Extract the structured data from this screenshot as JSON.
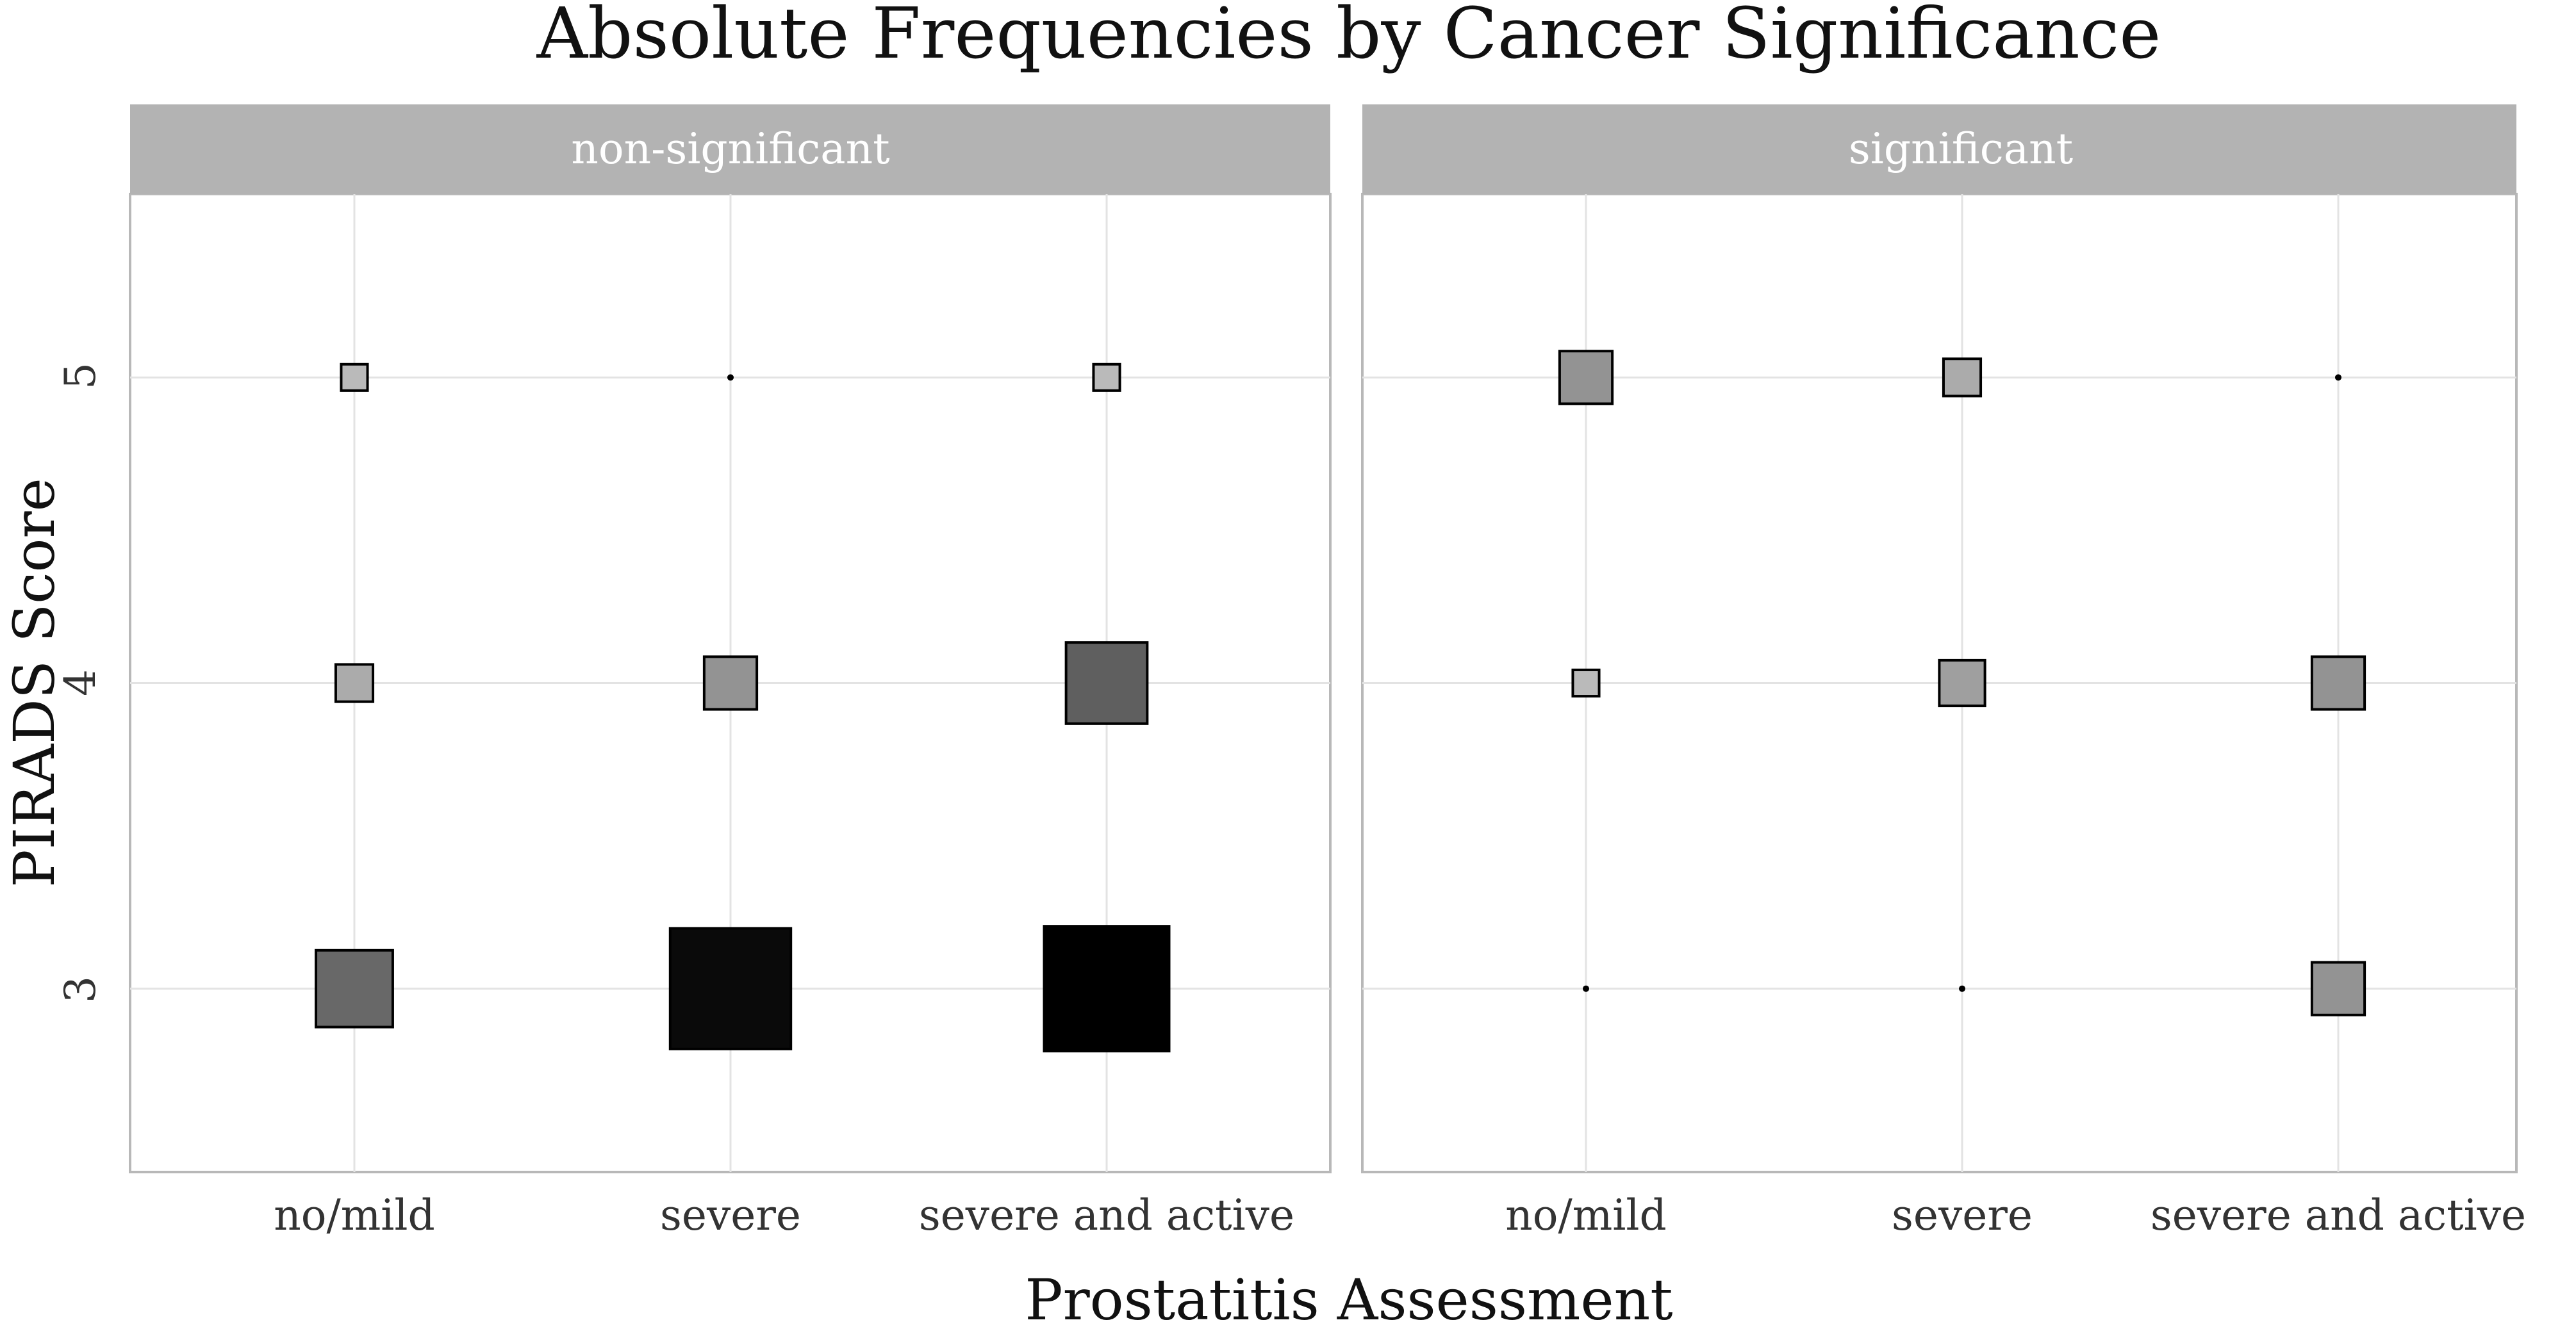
{
  "chart_data": {
    "type": "scatter",
    "title": "Absolute Frequencies by Cancer Significance",
    "xlabel": "Prostatitis Assessment",
    "ylabel": "PIRADS Score",
    "categories": [
      "no/mild",
      "severe",
      "severe and active"
    ],
    "y_ticks": [
      3,
      4,
      5
    ],
    "ylim": [
      2.4,
      5.6
    ],
    "facets": [
      {
        "label": "non-significant",
        "points": [
          {
            "x": "no/mild",
            "y": 5,
            "count": 2
          },
          {
            "x": "severe",
            "y": 5,
            "count": 0
          },
          {
            "x": "severe and active",
            "y": 5,
            "count": 2
          },
          {
            "x": "no/mild",
            "y": 4,
            "count": 4
          },
          {
            "x": "severe",
            "y": 4,
            "count": 8
          },
          {
            "x": "severe and active",
            "y": 4,
            "count": 19
          },
          {
            "x": "no/mild",
            "y": 3,
            "count": 17
          },
          {
            "x": "severe",
            "y": 3,
            "count": 42
          },
          {
            "x": "severe and active",
            "y": 3,
            "count": 45
          }
        ]
      },
      {
        "label": "significant",
        "points": [
          {
            "x": "no/mild",
            "y": 5,
            "count": 8
          },
          {
            "x": "severe",
            "y": 5,
            "count": 4
          },
          {
            "x": "severe and active",
            "y": 5,
            "count": 0
          },
          {
            "x": "no/mild",
            "y": 4,
            "count": 2
          },
          {
            "x": "severe",
            "y": 4,
            "count": 6
          },
          {
            "x": "severe and active",
            "y": 4,
            "count": 8
          },
          {
            "x": "no/mild",
            "y": 3,
            "count": 0
          },
          {
            "x": "severe",
            "y": 3,
            "count": 0
          },
          {
            "x": "severe and active",
            "y": 3,
            "count": 8
          }
        ]
      }
    ],
    "size_legend": "square size and fill darkness encode absolute frequency"
  }
}
